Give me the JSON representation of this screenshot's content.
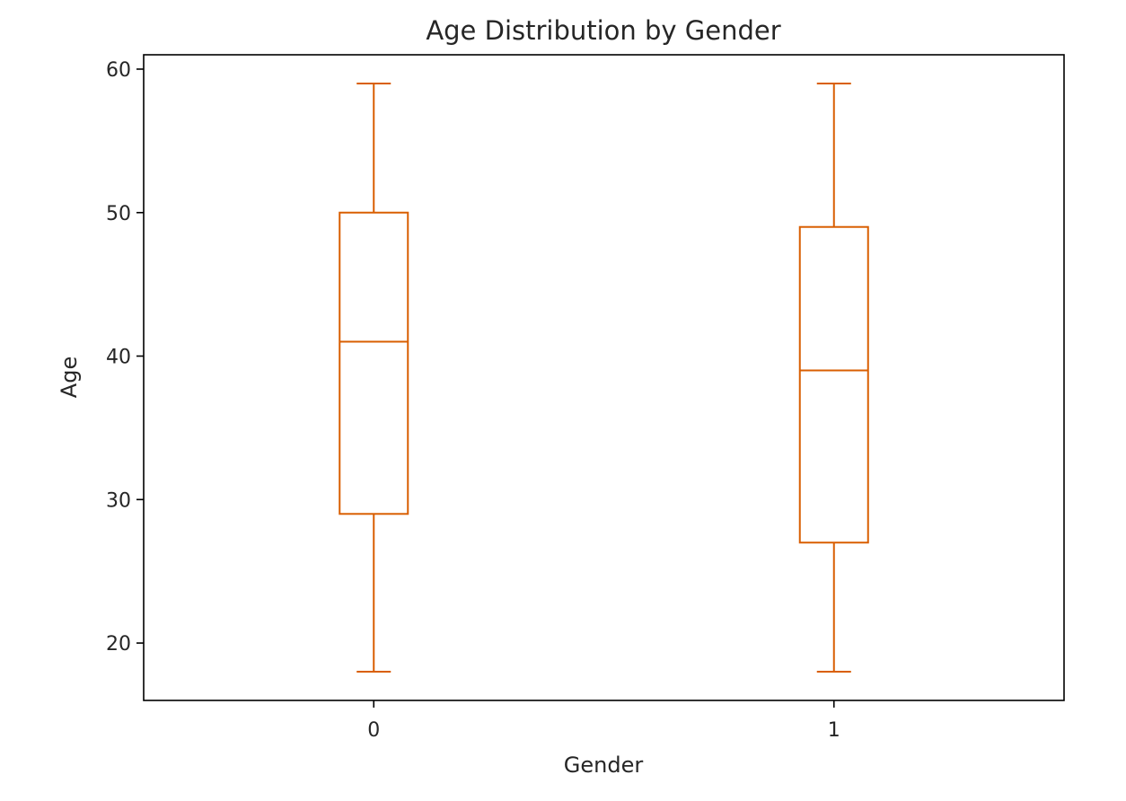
{
  "chart_data": {
    "type": "boxplot",
    "title": "Age Distribution by Gender",
    "xlabel": "Gender",
    "ylabel": "Age",
    "categories": [
      "0",
      "1"
    ],
    "boxes": [
      {
        "category": "0",
        "whisker_low": 18,
        "q1": 29,
        "median": 41,
        "q3": 50,
        "whisker_high": 59
      },
      {
        "category": "1",
        "whisker_low": 18,
        "q1": 27,
        "median": 39,
        "q3": 49,
        "whisker_high": 59
      }
    ],
    "yticks": [
      20,
      30,
      40,
      50,
      60
    ],
    "ylim": [
      16,
      61
    ],
    "grid": false,
    "legend": "none",
    "color": "#d95f02"
  }
}
